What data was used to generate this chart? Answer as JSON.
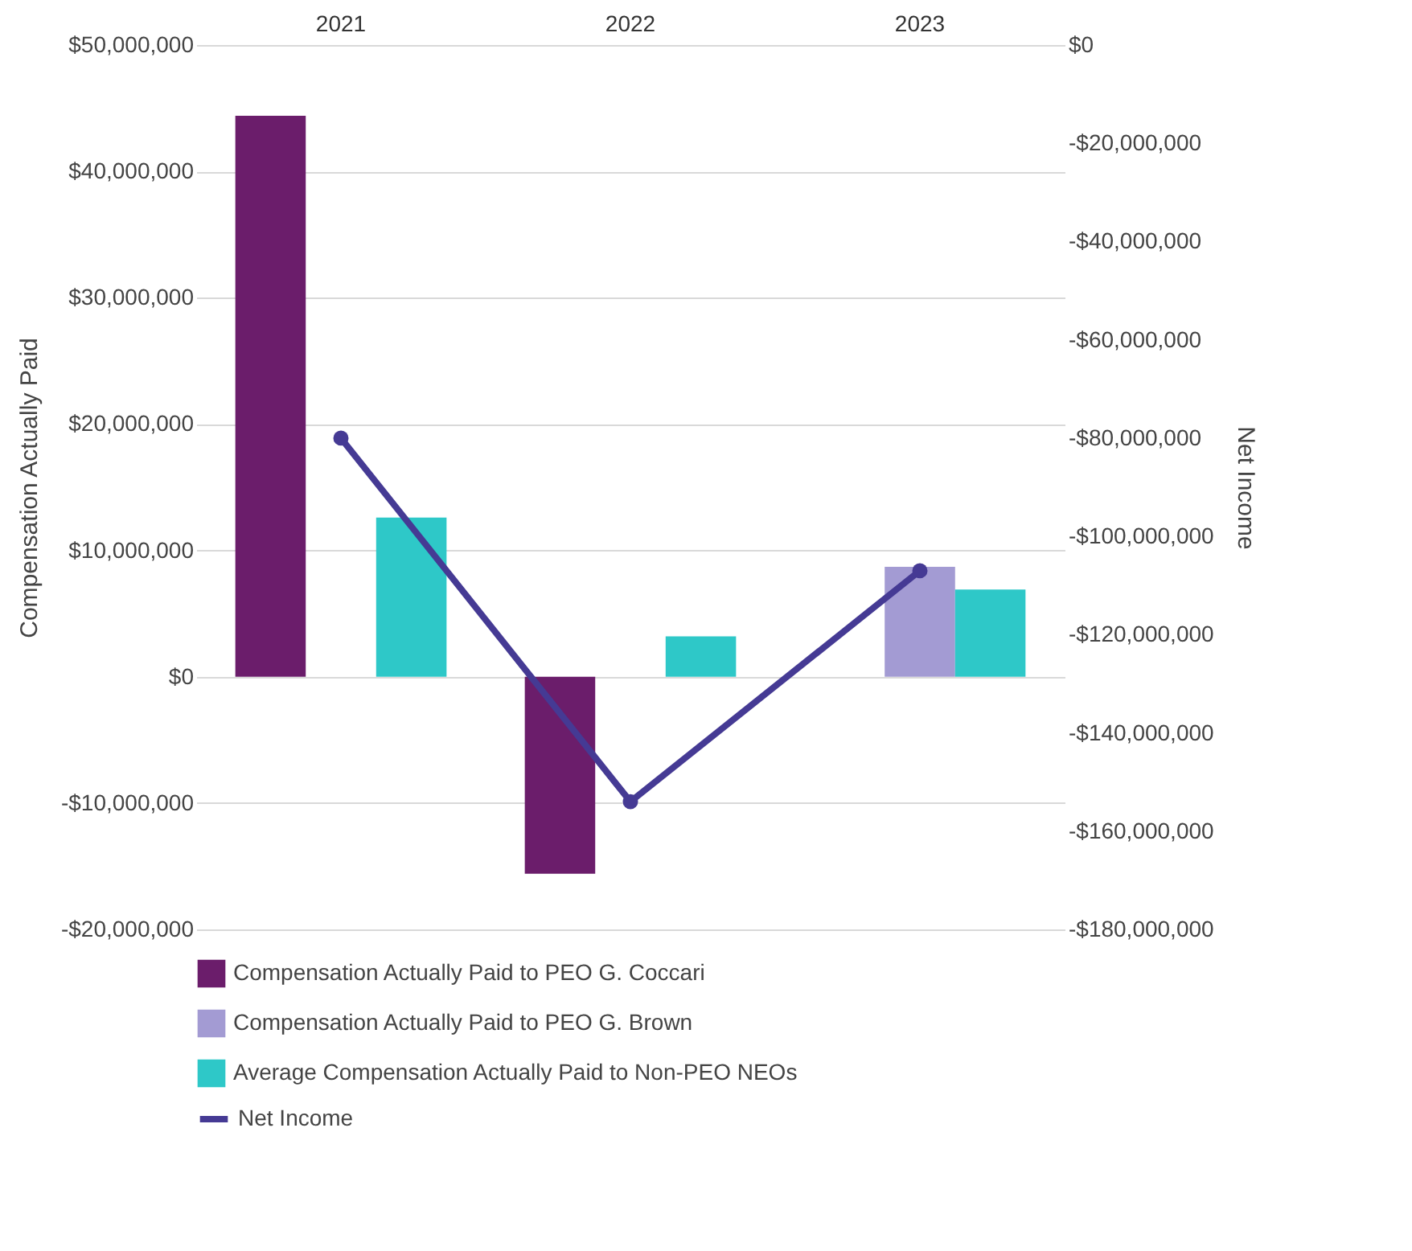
{
  "chart_data": {
    "type": "bar",
    "xlabel": null,
    "ylabel": "Compensation Actually Paid",
    "y2label": "Net Income",
    "categories": [
      "2021",
      "2022",
      "2023"
    ],
    "series": [
      {
        "name": "Compensation Actually Paid to PEO G. Coccari",
        "color": "#6b1d6b",
        "values": [
          44400000,
          -15600000,
          null
        ]
      },
      {
        "name": "Compensation Actually Paid to PEO G. Brown",
        "color": "#a39bd3",
        "values": [
          null,
          null,
          8700000
        ]
      },
      {
        "name": "Average Compensation Actually Paid to Non-PEO NEOs",
        "color": "#2ec8c8",
        "values": [
          12600000,
          3200000,
          6900000
        ]
      },
      {
        "name": "Net Income",
        "type": "line",
        "axis": "y2",
        "color": "#453a94",
        "values": [
          -80000000,
          -154000000,
          -107000000
        ]
      }
    ],
    "ylim": [
      -20000000,
      50000000
    ],
    "yticks": [
      {
        "value": -20000000,
        "label": "-$20,000,000"
      },
      {
        "value": -10000000,
        "label": "-$10,000,000"
      },
      {
        "value": 0,
        "label": "$0"
      },
      {
        "value": 10000000,
        "label": "$10,000,000"
      },
      {
        "value": 20000000,
        "label": "$20,000,000"
      },
      {
        "value": 30000000,
        "label": "$30,000,000"
      },
      {
        "value": 40000000,
        "label": "$40,000,000"
      },
      {
        "value": 50000000,
        "label": "$50,000,000"
      }
    ],
    "y2lim": [
      -180000000,
      0
    ],
    "y2ticks": [
      {
        "value": -180000000,
        "label": "-$180,000,000"
      },
      {
        "value": -160000000,
        "label": "-$160,000,000"
      },
      {
        "value": -140000000,
        "label": "-$140,000,000"
      },
      {
        "value": -120000000,
        "label": "-$120,000,000"
      },
      {
        "value": -100000000,
        "label": "-$100,000,000"
      },
      {
        "value": -80000000,
        "label": "-$80,000,000"
      },
      {
        "value": -60000000,
        "label": "-$60,000,000"
      },
      {
        "value": -40000000,
        "label": "-$40,000,000"
      },
      {
        "value": -20000000,
        "label": "-$20,000,000"
      },
      {
        "value": 0,
        "label": "$0"
      }
    ],
    "grid": "y",
    "legend": "bottom",
    "marker": "circle"
  }
}
